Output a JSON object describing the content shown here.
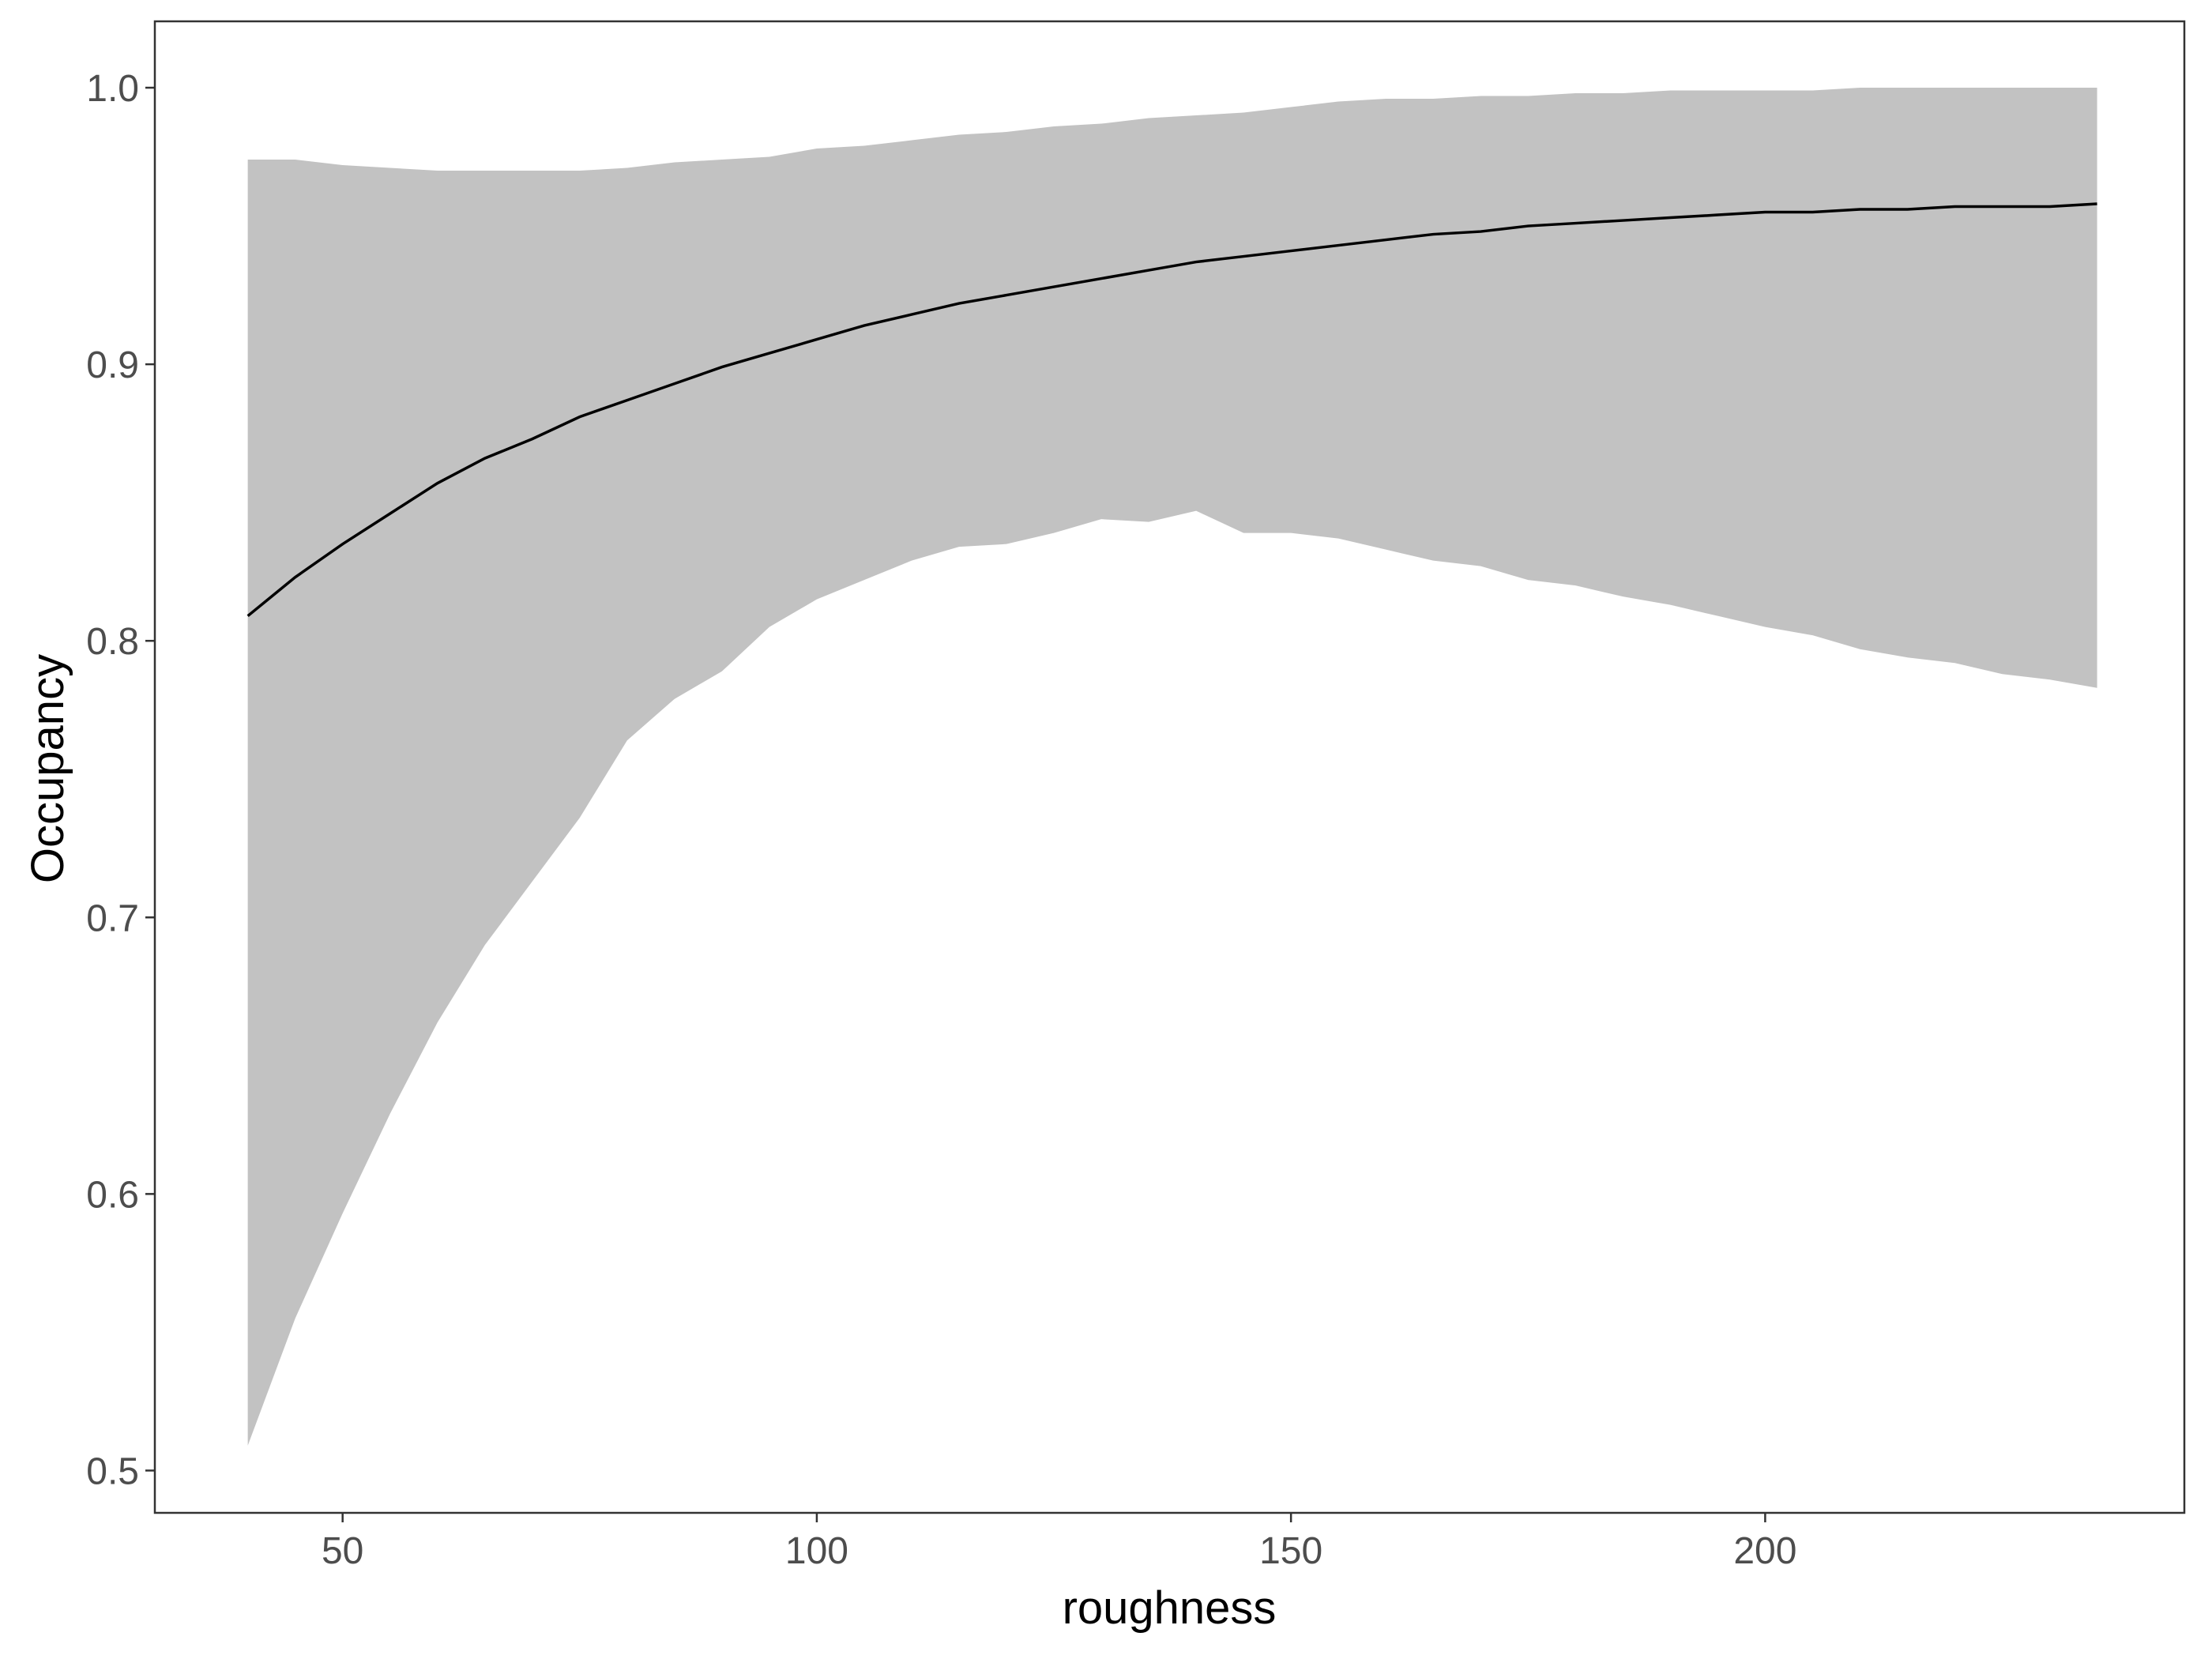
{
  "chart_data": {
    "type": "line",
    "x_label": "roughness",
    "y_label": "Occupancy",
    "x": [
      40,
      45,
      50,
      55,
      60,
      65,
      70,
      75,
      80,
      85,
      90,
      95,
      100,
      105,
      110,
      115,
      120,
      125,
      130,
      135,
      140,
      145,
      150,
      155,
      160,
      165,
      170,
      175,
      180,
      185,
      190,
      195,
      200,
      205,
      210,
      215,
      220,
      225,
      230,
      235
    ],
    "values": [
      0.809,
      0.823,
      0.835,
      0.846,
      0.857,
      0.866,
      0.873,
      0.881,
      0.887,
      0.893,
      0.899,
      0.904,
      0.909,
      0.914,
      0.918,
      0.922,
      0.925,
      0.928,
      0.931,
      0.934,
      0.937,
      0.939,
      0.941,
      0.943,
      0.945,
      0.947,
      0.948,
      0.95,
      0.951,
      0.952,
      0.953,
      0.954,
      0.955,
      0.955,
      0.956,
      0.956,
      0.957,
      0.957,
      0.957,
      0.958
    ],
    "lower": [
      0.509,
      0.555,
      0.593,
      0.629,
      0.662,
      0.69,
      0.713,
      0.736,
      0.764,
      0.779,
      0.789,
      0.805,
      0.815,
      0.822,
      0.829,
      0.834,
      0.835,
      0.839,
      0.844,
      0.843,
      0.847,
      0.839,
      0.839,
      0.837,
      0.833,
      0.829,
      0.827,
      0.822,
      0.82,
      0.816,
      0.813,
      0.809,
      0.805,
      0.802,
      0.797,
      0.794,
      0.792,
      0.788,
      0.786,
      0.783
    ],
    "upper": [
      0.974,
      0.974,
      0.972,
      0.971,
      0.97,
      0.97,
      0.97,
      0.97,
      0.971,
      0.973,
      0.974,
      0.975,
      0.978,
      0.979,
      0.981,
      0.983,
      0.984,
      0.986,
      0.987,
      0.989,
      0.99,
      0.991,
      0.993,
      0.995,
      0.996,
      0.996,
      0.997,
      0.997,
      0.998,
      0.998,
      0.999,
      0.999,
      0.999,
      0.999,
      1.0,
      1.0,
      1.0,
      1.0,
      1.0,
      1.0
    ],
    "color": "#000000",
    "band_color": "#c2c2c2",
    "xlim": [
      30.2,
      244.2
    ],
    "ylim": [
      0.4847,
      1.024
    ],
    "xticks": [
      50,
      100,
      150,
      200
    ],
    "yticks": [
      0.5,
      0.6,
      0.7,
      0.8,
      0.9,
      {
        "value": 1,
        "label": "1.0"
      }
    ]
  }
}
